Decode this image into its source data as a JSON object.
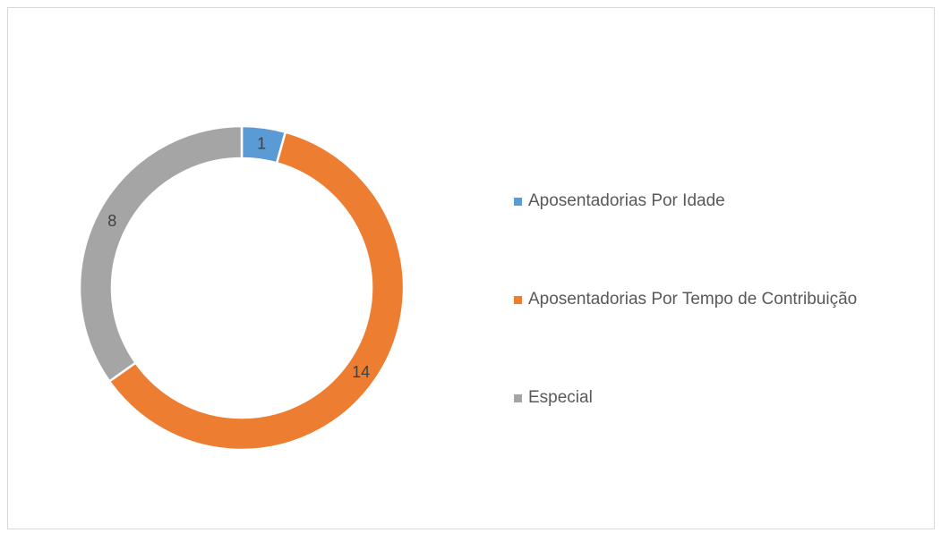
{
  "chart_data": {
    "type": "pie",
    "subtype": "donut",
    "title": "",
    "categories": [
      "Aposentadorias Por Idade",
      "Aposentadorias Por Tempo de Contribuição",
      "Especial"
    ],
    "values": [
      1,
      14,
      8
    ],
    "data_labels": [
      "1",
      "14",
      "8"
    ],
    "colors": [
      "#5b9bd5",
      "#ed7d31",
      "#a5a5a5"
    ],
    "legend_position": "right"
  }
}
